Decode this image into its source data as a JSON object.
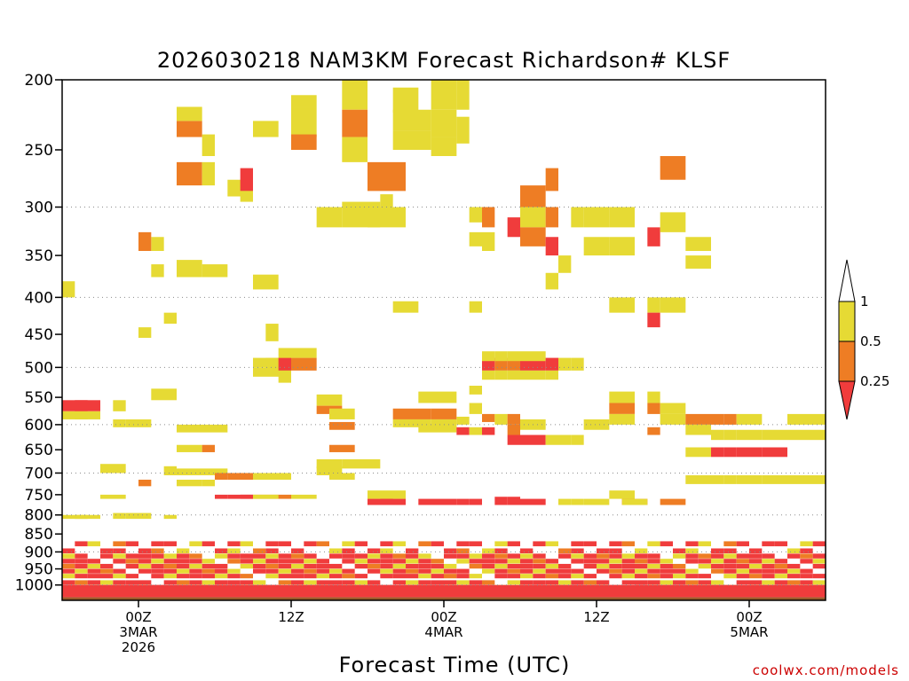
{
  "chart_data": {
    "type": "heatmap",
    "title": "2026030218 NAM3KM Forecast Richardson# KLSF",
    "xlabel": "Forecast Time (UTC)",
    "ylabel": "",
    "y_scale": "log",
    "y_inverted": true,
    "ylim": [
      200,
      1050
    ],
    "y_ticks": [
      200,
      250,
      300,
      350,
      400,
      450,
      500,
      550,
      600,
      650,
      700,
      750,
      800,
      850,
      900,
      950,
      1000
    ],
    "y_gridlines": [
      300,
      400,
      500,
      600,
      700,
      800,
      900,
      1000
    ],
    "x_range_hours": [
      0,
      60
    ],
    "x_ticks": [
      {
        "hour": 6,
        "lines": [
          "00Z",
          "3MAR",
          "2026"
        ]
      },
      {
        "hour": 18,
        "lines": [
          "12Z"
        ]
      },
      {
        "hour": 30,
        "lines": [
          "00Z",
          "4MAR"
        ]
      },
      {
        "hour": 42,
        "lines": [
          "12Z"
        ]
      },
      {
        "hour": 54,
        "lines": [
          "00Z",
          "5MAR"
        ]
      }
    ],
    "legend": {
      "placement": "right",
      "labels": [
        "1",
        "0.5",
        "0.25"
      ],
      "bins": [
        {
          "range": "< 0.25",
          "color": "#f03c3c"
        },
        {
          "range": "0.25 - 0.5",
          "color": "#ee7d24"
        },
        {
          "range": "0.5 - 1",
          "color": "#e6da34"
        },
        {
          "range": "> 1",
          "color": "#ffffff"
        }
      ]
    },
    "ground_color": "#9a5a2a",
    "cells": [
      [
        0,
        0,
        0,
        [
          380,
          400,
          "y"
        ]
      ],
      [
        1,
        0,
        0,
        [
          380,
          400,
          "y"
        ]
      ],
      [
        0,
        1,
        0,
        [
          555,
          575,
          "r"
        ],
        [
          575,
          590,
          "y"
        ],
        [
          800,
          810,
          "y"
        ]
      ],
      [
        1,
        2,
        3,
        [
          555,
          575,
          "r"
        ],
        [
          575,
          590,
          "y"
        ],
        [
          800,
          810,
          "y"
        ]
      ],
      [
        4,
        4,
        0,
        [
          555,
          575,
          "y"
        ],
        [
          590,
          605,
          "y"
        ],
        [
          795,
          810,
          "y"
        ]
      ],
      [
        5,
        6,
        0,
        [
          590,
          605,
          "y"
        ],
        [
          795,
          810,
          "y"
        ]
      ],
      [
        3,
        4,
        0,
        [
          680,
          700,
          "y"
        ],
        [
          750,
          760,
          "y"
        ]
      ],
      [
        7,
        7,
        0,
        [
          330,
          345,
          "y"
        ],
        [
          360,
          375,
          "y"
        ]
      ],
      [
        6,
        6,
        0,
        [
          325,
          345,
          "o"
        ],
        [
          440,
          455,
          "y"
        ],
        [
          715,
          730,
          "o"
        ]
      ],
      [
        8,
        8,
        0,
        [
          420,
          435,
          "y"
        ],
        [
          685,
          705,
          "y"
        ],
        [
          800,
          810,
          "y"
        ]
      ],
      [
        7,
        8,
        0,
        [
          535,
          555,
          "y"
        ]
      ],
      [
        9,
        10,
        0,
        [
          228,
          240,
          "o"
        ],
        [
          218,
          228,
          "y"
        ],
        [
          260,
          280,
          "o"
        ],
        [
          640,
          655,
          "y"
        ],
        [
          715,
          730,
          "y"
        ],
        [
          355,
          375,
          "y"
        ]
      ],
      [
        11,
        11,
        0,
        [
          238,
          255,
          "y"
        ],
        [
          260,
          280,
          "y"
        ],
        [
          640,
          655,
          "o"
        ],
        [
          715,
          730,
          "y"
        ],
        [
          360,
          375,
          "y"
        ]
      ],
      [
        9,
        12,
        0,
        [
          690,
          705,
          "y"
        ],
        [
          600,
          615,
          "y"
        ]
      ],
      [
        12,
        12,
        0,
        [
          750,
          760,
          "r"
        ],
        [
          700,
          715,
          "o"
        ],
        [
          360,
          375,
          "y"
        ]
      ],
      [
        13,
        14,
        0,
        [
          275,
          290,
          "y"
        ],
        [
          700,
          715,
          "o"
        ],
        [
          750,
          760,
          "r"
        ]
      ],
      [
        14,
        14,
        0,
        [
          265,
          285,
          "r"
        ],
        [
          285,
          295,
          "y"
        ],
        [
          750,
          760,
          "r"
        ]
      ],
      [
        15,
        17,
        0,
        [
          750,
          760,
          "o"
        ],
        [
          700,
          715,
          "y"
        ],
        [
          485,
          500,
          "y"
        ],
        [
          500,
          515,
          "y"
        ]
      ],
      [
        16,
        16,
        0,
        [
          435,
          460,
          "y"
        ],
        [
          485,
          505,
          "y"
        ]
      ],
      [
        17,
        17,
        0,
        [
          485,
          505,
          "r"
        ],
        [
          470,
          485,
          "y"
        ],
        [
          505,
          525,
          "y"
        ]
      ],
      [
        18,
        19,
        0,
        [
          485,
          505,
          "o"
        ],
        [
          470,
          485,
          "y"
        ]
      ],
      [
        15,
        16,
        0,
        [
          372,
          390,
          "y"
        ],
        [
          750,
          760,
          "y"
        ],
        [
          228,
          240,
          "y"
        ]
      ],
      [
        18,
        19,
        0,
        [
          218,
          240,
          "y"
        ],
        [
          238,
          250,
          "o"
        ],
        [
          210,
          218,
          "y"
        ],
        [
          750,
          760,
          "y"
        ]
      ],
      [
        22,
        24,
        0,
        [
          295,
          320,
          "y"
        ],
        [
          670,
          690,
          "y"
        ]
      ],
      [
        25,
        25,
        0,
        [
          288,
          300,
          "y"
        ],
        [
          760,
          775,
          "r"
        ]
      ],
      [
        26,
        27,
        0,
        [
          205,
          222,
          "y"
        ],
        [
          405,
          420,
          "y"
        ]
      ],
      [
        28,
        30,
        0,
        [
          540,
          560,
          "y"
        ],
        [
          600,
          615,
          "y"
        ],
        [
          760,
          775,
          "r"
        ]
      ],
      [
        20,
        21,
        0,
        [
          300,
          320,
          "y"
        ],
        [
          545,
          565,
          "y"
        ],
        [
          565,
          580,
          "o"
        ],
        [
          670,
          690,
          "y"
        ],
        [
          685,
          705,
          "y"
        ]
      ],
      [
        21,
        22,
        0,
        [
          570,
          590,
          "y"
        ],
        [
          595,
          610,
          "o"
        ],
        [
          640,
          655,
          "o"
        ],
        [
          700,
          715,
          "y"
        ]
      ],
      [
        22,
        23,
        0,
        [
          200,
          220,
          "y"
        ],
        [
          220,
          240,
          "o"
        ],
        [
          240,
          260,
          "y"
        ]
      ],
      [
        24,
        26,
        0,
        [
          260,
          285,
          "o"
        ],
        [
          300,
          320,
          "y"
        ],
        [
          740,
          760,
          "y"
        ],
        [
          760,
          775,
          "r"
        ]
      ],
      [
        26,
        28,
        0,
        [
          570,
          590,
          "o"
        ],
        [
          590,
          605,
          "y"
        ],
        [
          220,
          235,
          "y"
        ],
        [
          235,
          250,
          "y"
        ]
      ],
      [
        29,
        30,
        0,
        [
          570,
          590,
          "o"
        ],
        [
          590,
          610,
          "y"
        ],
        [
          200,
          220,
          "y"
        ],
        [
          220,
          240,
          "y"
        ],
        [
          240,
          255,
          "y"
        ]
      ],
      [
        31,
        31,
        0,
        [
          200,
          220,
          "y"
        ],
        [
          225,
          245,
          "y"
        ],
        [
          760,
          775,
          "r"
        ],
        [
          585,
          600,
          "y"
        ],
        [
          605,
          620,
          "r"
        ]
      ],
      [
        32,
        32,
        0,
        [
          405,
          420,
          "y"
        ],
        [
          530,
          545,
          "y"
        ],
        [
          560,
          580,
          "y"
        ],
        [
          605,
          620,
          "y"
        ],
        [
          760,
          775,
          "r"
        ],
        [
          300,
          315,
          "y"
        ],
        [
          325,
          340,
          "y"
        ]
      ],
      [
        33,
        33,
        0,
        [
          485,
          505,
          "r"
        ],
        [
          475,
          490,
          "y"
        ],
        [
          505,
          520,
          "y"
        ],
        [
          605,
          620,
          "r"
        ],
        [
          580,
          595,
          "o"
        ],
        [
          300,
          320,
          "o"
        ],
        [
          325,
          345,
          "y"
        ]
      ],
      [
        34,
        34,
        0,
        [
          485,
          505,
          "o"
        ],
        [
          475,
          490,
          "y"
        ],
        [
          505,
          520,
          "y"
        ],
        [
          580,
          600,
          "y"
        ],
        [
          755,
          775,
          "r"
        ]
      ],
      [
        35,
        35,
        0,
        [
          485,
          505,
          "o"
        ],
        [
          475,
          490,
          "y"
        ],
        [
          505,
          520,
          "y"
        ],
        [
          580,
          600,
          "o"
        ],
        [
          600,
          620,
          "o"
        ],
        [
          620,
          640,
          "r"
        ],
        [
          310,
          330,
          "r"
        ],
        [
          755,
          775,
          "r"
        ]
      ],
      [
        36,
        37,
        0,
        [
          485,
          505,
          "r"
        ],
        [
          475,
          490,
          "y"
        ],
        [
          505,
          520,
          "y"
        ],
        [
          620,
          640,
          "r"
        ],
        [
          590,
          610,
          "y"
        ],
        [
          760,
          775,
          "r"
        ]
      ],
      [
        36,
        37,
        0,
        [
          280,
          300,
          "o"
        ],
        [
          300,
          320,
          "y"
        ],
        [
          320,
          340,
          "o"
        ]
      ],
      [
        38,
        38,
        0,
        [
          485,
          505,
          "r"
        ],
        [
          505,
          520,
          "y"
        ],
        [
          620,
          640,
          "y"
        ],
        [
          330,
          350,
          "r"
        ],
        [
          370,
          390,
          "y"
        ],
        [
          265,
          285,
          "o"
        ],
        [
          300,
          320,
          "o"
        ]
      ],
      [
        39,
        39,
        0,
        [
          485,
          505,
          "y"
        ],
        [
          620,
          640,
          "y"
        ],
        [
          350,
          370,
          "y"
        ],
        [
          760,
          775,
          "y"
        ]
      ],
      [
        40,
        40,
        0,
        [
          485,
          505,
          "y"
        ],
        [
          620,
          640,
          "y"
        ],
        [
          300,
          320,
          "y"
        ],
        [
          760,
          775,
          "y"
        ]
      ],
      [
        41,
        42,
        0,
        [
          590,
          610,
          "y"
        ],
        [
          330,
          350,
          "y"
        ],
        [
          300,
          320,
          "y"
        ],
        [
          760,
          775,
          "y"
        ]
      ],
      [
        43,
        44,
        0,
        [
          540,
          560,
          "y"
        ],
        [
          560,
          580,
          "o"
        ],
        [
          580,
          600,
          "y"
        ],
        [
          330,
          350,
          "y"
        ],
        [
          300,
          320,
          "y"
        ],
        [
          400,
          420,
          "y"
        ],
        [
          740,
          760,
          "y"
        ]
      ],
      [
        44,
        45,
        0,
        [
          760,
          775,
          "r"
        ],
        [
          760,
          775,
          "y"
        ]
      ],
      [
        46,
        46,
        0,
        [
          540,
          560,
          "y"
        ],
        [
          560,
          580,
          "o"
        ],
        [
          400,
          420,
          "y"
        ],
        [
          320,
          340,
          "r"
        ],
        [
          420,
          440,
          "r"
        ],
        [
          605,
          620,
          "o"
        ]
      ],
      [
        47,
        48,
        0,
        [
          560,
          580,
          "y"
        ],
        [
          580,
          600,
          "y"
        ],
        [
          400,
          420,
          "y"
        ],
        [
          255,
          275,
          "o"
        ],
        [
          305,
          325,
          "y"
        ],
        [
          760,
          775,
          "o"
        ]
      ],
      [
        49,
        50,
        0,
        [
          580,
          600,
          "o"
        ],
        [
          600,
          620,
          "y"
        ],
        [
          645,
          665,
          "y"
        ],
        [
          705,
          725,
          "y"
        ],
        [
          330,
          345,
          "y"
        ],
        [
          350,
          365,
          "y"
        ]
      ],
      [
        51,
        51,
        0,
        [
          580,
          600,
          "o"
        ],
        [
          610,
          630,
          "y"
        ],
        [
          645,
          665,
          "r"
        ],
        [
          705,
          725,
          "y"
        ]
      ],
      [
        52,
        52,
        0,
        [
          580,
          600,
          "o"
        ],
        [
          610,
          630,
          "y"
        ],
        [
          645,
          665,
          "r"
        ],
        [
          705,
          725,
          "y"
        ]
      ],
      [
        53,
        54,
        0,
        [
          580,
          600,
          "y"
        ],
        [
          610,
          630,
          "y"
        ],
        [
          645,
          665,
          "r"
        ],
        [
          705,
          725,
          "y"
        ]
      ],
      [
        55,
        56,
        0,
        [
          610,
          630,
          "y"
        ],
        [
          645,
          665,
          "r"
        ],
        [
          705,
          725,
          "y"
        ]
      ],
      [
        57,
        59,
        0,
        [
          580,
          600,
          "y"
        ],
        [
          610,
          630,
          "y"
        ],
        [
          705,
          725,
          "y"
        ]
      ]
    ]
  },
  "credit": "coolwx.com/models"
}
